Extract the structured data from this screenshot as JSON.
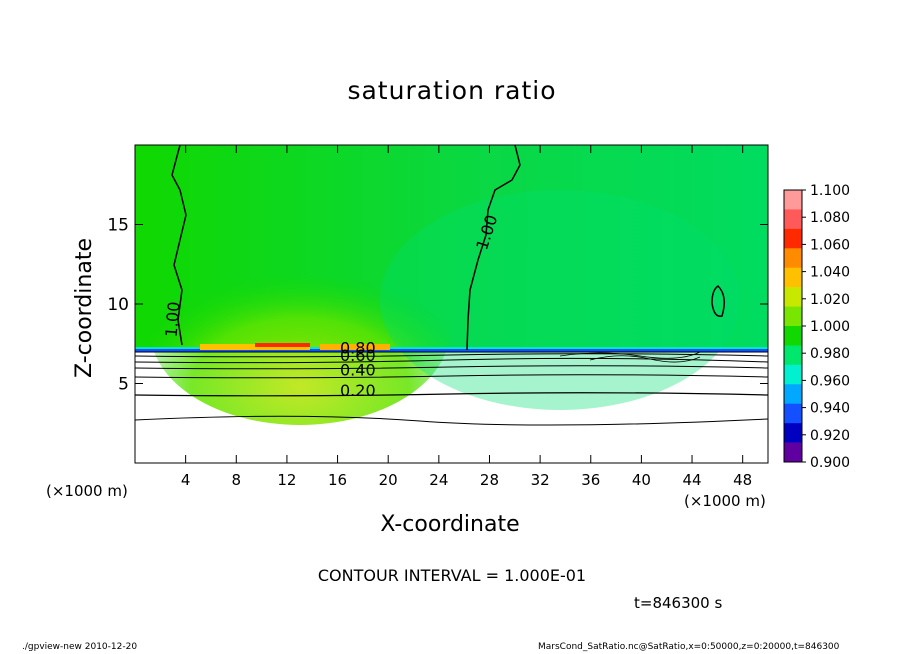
{
  "chart_data": {
    "type": "heatmap",
    "title": "saturation ratio",
    "xlabel": "X-coordinate",
    "ylabel": "Z-coordinate",
    "x_unit_label": "(×1000 m)",
    "x_ticks": [
      4,
      8,
      12,
      16,
      20,
      24,
      28,
      32,
      36,
      40,
      44,
      48
    ],
    "y_ticks": [
      5,
      10,
      15
    ],
    "xlim": [
      0,
      50
    ],
    "ylim": [
      0,
      20
    ],
    "colorbar": {
      "levels": [
        "1.100",
        "1.080",
        "1.060",
        "1.040",
        "1.020",
        "1.000",
        "0.980",
        "0.960",
        "0.940",
        "0.920",
        "0.900"
      ],
      "colors": [
        "#ff9a9a",
        "#ff5a5a",
        "#ff2a00",
        "#ff8c00",
        "#ffc000",
        "#c8e800",
        "#78e600",
        "#10d800",
        "#00e86c",
        "#00f0d0",
        "#00a8ff",
        "#1450ff",
        "#0000c0",
        "#6000a0"
      ]
    },
    "contour_labels": [
      {
        "text": "1.00",
        "x": 3.4,
        "y": 9.0,
        "rotate": -85
      },
      {
        "text": "1.00",
        "x": 28.2,
        "y": 14.4,
        "rotate": -72
      },
      {
        "text": "0.40",
        "x": 17.6,
        "y": 5.5,
        "rotate": 0
      },
      {
        "text": "0.20",
        "x": 17.6,
        "y": 4.2,
        "rotate": 0
      },
      {
        "text": "0.60",
        "x": 17.6,
        "y": 6.4,
        "rotate": 0
      },
      {
        "text": "0.80",
        "x": 17.6,
        "y": 6.9,
        "rotate": 0
      }
    ],
    "contour_interval_text": "CONTOUR INTERVAL = 1.000E-01",
    "time_text": "t=846300 s"
  },
  "footer": {
    "left": "./gpview-new   2010-12-20",
    "right": "MarsCond_SatRatio.nc@SatRatio,x=0:50000,z=0:20000,t=846300"
  }
}
